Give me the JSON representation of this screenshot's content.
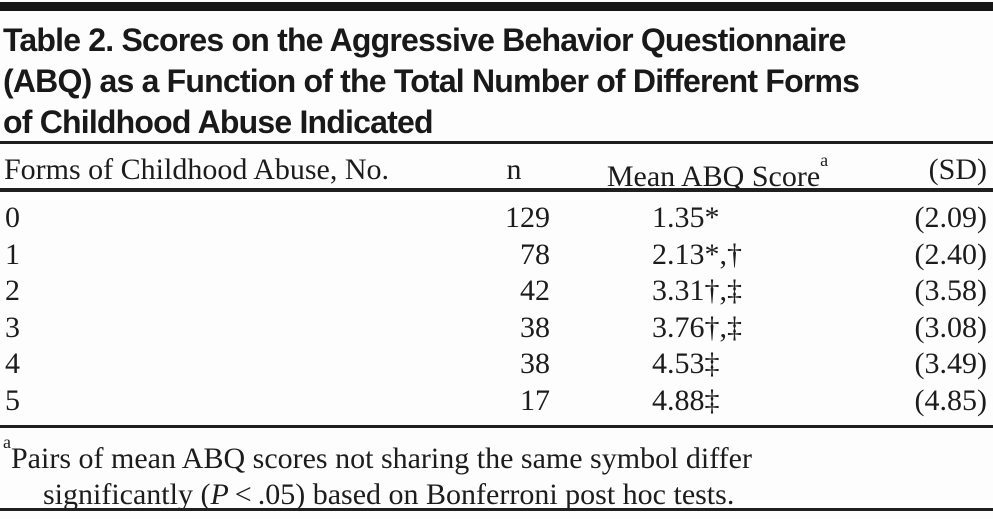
{
  "title_lines": [
    "Table 2. Scores on the Aggressive Behavior Questionnaire",
    "(ABQ) as a Function of the Total Number of Different Forms",
    "of Childhood Abuse Indicated"
  ],
  "table": {
    "header": {
      "forms": "Forms of Childhood Abuse, No.",
      "n": "n",
      "mean": "Mean ABQ Score",
      "mean_sup": "a",
      "sd": "(SD)"
    },
    "rows": [
      {
        "forms": "0",
        "n": "129",
        "mean": "1.35*",
        "sd": "(2.09)"
      },
      {
        "forms": "1",
        "n": "78",
        "mean": "2.13*,†",
        "sd": "(2.40)"
      },
      {
        "forms": "2",
        "n": "42",
        "mean": "3.31†,‡",
        "sd": "(3.58)"
      },
      {
        "forms": "3",
        "n": "38",
        "mean": "3.76†,‡",
        "sd": "(3.08)"
      },
      {
        "forms": "4",
        "n": "38",
        "mean": "4.53‡",
        "sd": "(3.49)"
      },
      {
        "forms": "5",
        "n": "17",
        "mean": "4.88‡",
        "sd": "(4.85)"
      }
    ]
  },
  "footnote": {
    "marker": "a",
    "line1": "Pairs of mean ABQ scores not sharing the same symbol differ",
    "line2_pre": "significantly (",
    "line2_p": "P",
    "line2_post": " < .05) based on Bonferroni post hoc tests."
  },
  "colors": {
    "text": "#1c1c1c",
    "rule": "#1f1f1f",
    "top_bar": "#161616",
    "background": "#fdfdfd"
  }
}
